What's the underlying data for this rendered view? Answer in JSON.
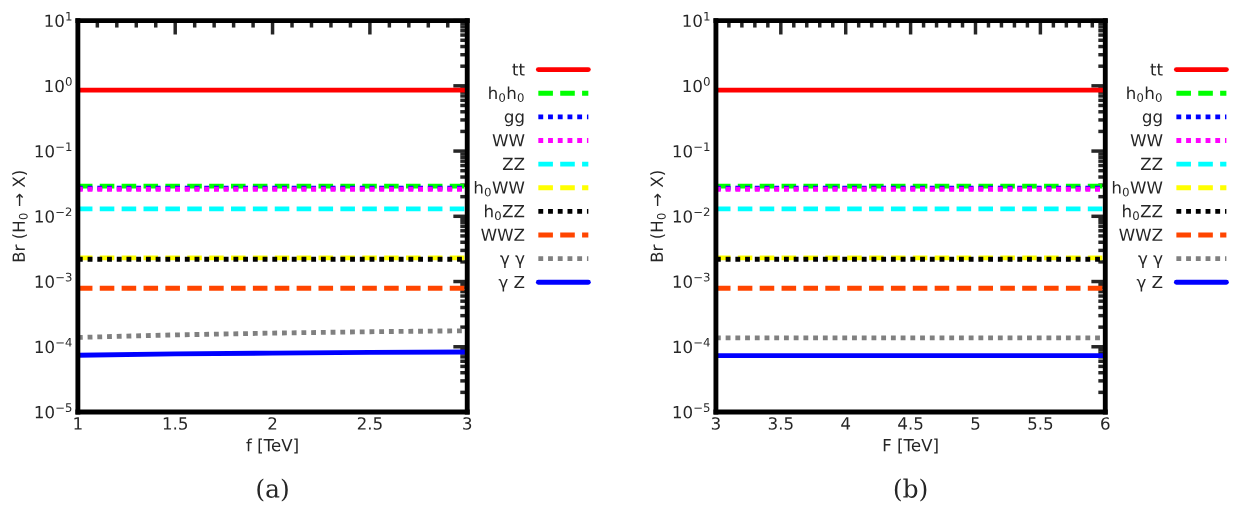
{
  "chart_data": [
    {
      "type": "line",
      "xlabel": "f [TeV]",
      "ylabel": "Br (H$_{0}$ → X)",
      "log": "y",
      "x": [
        1,
        1.5,
        2,
        2.5,
        3
      ],
      "xlim": [
        1,
        3
      ],
      "xticks": [
        1,
        1.5,
        2,
        2.5,
        3
      ],
      "ylim": [
        1e-05,
        10
      ],
      "yticks": [
        {
          "value": 1e-05,
          "label": "10$^{−5}$"
        },
        {
          "value": 0.0001,
          "label": "10$^{−4}$"
        },
        {
          "value": 0.001,
          "label": "10$^{−3}$"
        },
        {
          "value": 0.01,
          "label": "10$^{−2}$"
        },
        {
          "value": 0.1,
          "label": "10$^{−1}$"
        },
        {
          "value": 1,
          "label": "10$^{0}$"
        },
        {
          "value": 10,
          "label": "10$^{1}$"
        }
      ],
      "grid": false,
      "legend": "right",
      "annotations": [
        "(a)"
      ],
      "series": [
        {
          "name": "tt",
          "color": "#ff0000",
          "line_style": "solid",
          "values": [
            0.86,
            0.86,
            0.86,
            0.86,
            0.86
          ]
        },
        {
          "name": "h$_{0}$h$_{0}$",
          "color": "#00ff00",
          "line_style": "dashed",
          "values": [
            0.029,
            0.029,
            0.029,
            0.029,
            0.029
          ]
        },
        {
          "name": "gg",
          "color": "#0000ff",
          "line_style": "dotted",
          "values": [
            0.027,
            0.027,
            0.027,
            0.027,
            0.027
          ]
        },
        {
          "name": "WW",
          "color": "#ff00ff",
          "line_style": "dotted",
          "values": [
            0.026,
            0.026,
            0.026,
            0.026,
            0.026
          ]
        },
        {
          "name": "ZZ",
          "color": "#00ffff",
          "line_style": "dashed",
          "values": [
            0.013,
            0.013,
            0.013,
            0.013,
            0.013
          ]
        },
        {
          "name": "h$_{0}$WW",
          "color": "#ffff00",
          "line_style": "dashed",
          "values": [
            0.0023,
            0.0023,
            0.0023,
            0.0023,
            0.0023
          ]
        },
        {
          "name": "h$_{0}$ZZ",
          "color": "#000000",
          "line_style": "dotted",
          "values": [
            0.0022,
            0.0022,
            0.0022,
            0.0022,
            0.0022
          ]
        },
        {
          "name": "WWZ",
          "color": "#ff4500",
          "line_style": "dashed",
          "values": [
            0.00079,
            0.00079,
            0.00079,
            0.00079,
            0.00079
          ]
        },
        {
          "name": "γ γ",
          "color": "#808080",
          "line_style": "dotted",
          "values": [
            0.000139,
            0.000152,
            0.000162,
            0.00017,
            0.000176
          ]
        },
        {
          "name": "γ Z",
          "color": "#0000ff",
          "line_style": "solid",
          "values": [
            7.4e-05,
            7.8e-05,
            8e-05,
            8.2e-05,
            8.3e-05
          ]
        }
      ]
    },
    {
      "type": "line",
      "xlabel": "F [TeV]",
      "ylabel": "Br (H$_{0}$ → X)",
      "log": "y",
      "x": [
        3,
        4.5,
        6
      ],
      "xlim": [
        3,
        6
      ],
      "xticks": [
        3,
        3.5,
        4,
        4.5,
        5,
        5.5,
        6
      ],
      "ylim": [
        1e-05,
        10
      ],
      "yticks": [
        {
          "value": 1e-05,
          "label": "10$^{−5}$"
        },
        {
          "value": 0.0001,
          "label": "10$^{−4}$"
        },
        {
          "value": 0.001,
          "label": "10$^{−3}$"
        },
        {
          "value": 0.01,
          "label": "10$^{−2}$"
        },
        {
          "value": 0.1,
          "label": "10$^{−1}$"
        },
        {
          "value": 1,
          "label": "10$^{0}$"
        },
        {
          "value": 10,
          "label": "10$^{1}$"
        }
      ],
      "grid": false,
      "legend": "right",
      "annotations": [
        "(b)"
      ],
      "series": [
        {
          "name": "tt",
          "color": "#ff0000",
          "line_style": "solid",
          "values": [
            0.86,
            0.86,
            0.86
          ]
        },
        {
          "name": "h$_{0}$h$_{0}$",
          "color": "#00ff00",
          "line_style": "dashed",
          "values": [
            0.029,
            0.029,
            0.029
          ]
        },
        {
          "name": "gg",
          "color": "#0000ff",
          "line_style": "dotted",
          "values": [
            0.027,
            0.027,
            0.027
          ]
        },
        {
          "name": "WW",
          "color": "#ff00ff",
          "line_style": "dotted",
          "values": [
            0.026,
            0.026,
            0.026
          ]
        },
        {
          "name": "ZZ",
          "color": "#00ffff",
          "line_style": "dashed",
          "values": [
            0.013,
            0.013,
            0.013
          ]
        },
        {
          "name": "h$_{0}$WW",
          "color": "#ffff00",
          "line_style": "dashed",
          "values": [
            0.0023,
            0.0023,
            0.0023
          ]
        },
        {
          "name": "h$_{0}$ZZ",
          "color": "#000000",
          "line_style": "dotted",
          "values": [
            0.0022,
            0.0022,
            0.0022
          ]
        },
        {
          "name": "WWZ",
          "color": "#ff4500",
          "line_style": "dashed",
          "values": [
            0.00079,
            0.00079,
            0.00079
          ]
        },
        {
          "name": "γ γ",
          "color": "#808080",
          "line_style": "dotted",
          "values": [
            0.000137,
            0.000137,
            0.000137
          ]
        },
        {
          "name": "γ Z",
          "color": "#0000ff",
          "line_style": "solid",
          "values": [
            7.3e-05,
            7.3e-05,
            7.3e-05
          ]
        }
      ]
    }
  ]
}
